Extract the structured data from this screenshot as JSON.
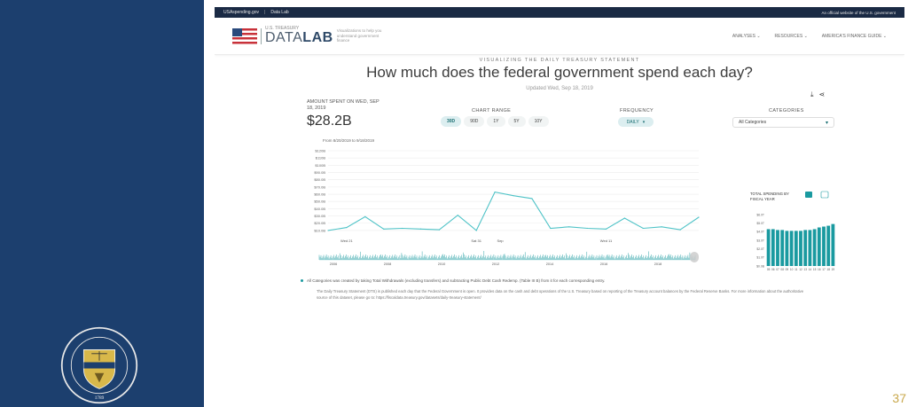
{
  "topbar": {
    "site": "USAspending.gov",
    "separator": "|",
    "section": "Data Lab",
    "official": "An official website of the U.S. government"
  },
  "header": {
    "logo_top": "U.S. TREASURY",
    "logo_main": "DATA",
    "logo_lab": "LAB",
    "tagline": "Visualizations to help you understand government finance",
    "nav": [
      "ANALYSES ⌄",
      "RESOURCES ⌄",
      "AMERICA'S FINANCE GUIDE ⌄"
    ]
  },
  "page": {
    "eyebrow": "VISUALIZING THE DAILY TREASURY STATEMENT",
    "title": "How much does the federal government spend each day?",
    "updated": "Updated Wed, Sep 18, 2019"
  },
  "amount": {
    "label": "AMOUNT SPENT ON WED, SEP 18, 2019",
    "value": "$28.2B"
  },
  "controls": {
    "range_label": "CHART RANGE",
    "range_options": [
      "30D",
      "90D",
      "1Y",
      "5Y",
      "10Y"
    ],
    "range_selected": "30D",
    "frequency_label": "FREQUENCY",
    "frequency_value": "DAILY",
    "categories_label": "CATEGORIES",
    "categories_value": "All Categories"
  },
  "from_text": "From 8/20/2019 to 9/18/2019",
  "chart_data": [
    {
      "type": "line",
      "title": "",
      "xlabel": "",
      "ylabel": "",
      "x": [
        "Aug 20",
        "Aug 21",
        "Aug 22",
        "Aug 23",
        "Aug 26",
        "Aug 27",
        "Aug 28",
        "Aug 29",
        "Aug 30",
        "Sep 3",
        "Sep 4",
        "Sep 5",
        "Sep 6",
        "Sep 9",
        "Sep 10",
        "Sep 11",
        "Sep 12",
        "Sep 13",
        "Sep 16",
        "Sep 17",
        "Sep 18"
      ],
      "values": [
        10,
        14,
        29,
        12,
        13,
        12,
        11,
        31,
        10,
        63,
        58,
        54,
        13,
        15,
        13,
        12,
        27,
        13,
        15,
        11,
        28.2
      ],
      "y_ticks": [
        "$10.0B",
        "$20.0B",
        "$30.0B",
        "$40.0B",
        "$50.0B",
        "$60.0B",
        "$70.0B",
        "$80.0B",
        "$90.0B",
        "$100B",
        "$110B",
        "$120B"
      ],
      "ylim": [
        5,
        120
      ],
      "x_tick_labels": [
        "Wed 21",
        "Sat 31",
        "Sep",
        "Wed 11"
      ],
      "grid": true
    },
    {
      "type": "bar",
      "title": "TOTAL SPENDING BY FISCAL YEAR",
      "categories": [
        "05",
        "06",
        "07",
        "08",
        "09",
        "10",
        "11",
        "12",
        "13",
        "14",
        "15",
        "16",
        "17",
        "18",
        "19"
      ],
      "values": [
        4.3,
        4.3,
        4.2,
        4.2,
        4.1,
        4.1,
        4.1,
        4.1,
        4.2,
        4.2,
        4.3,
        4.5,
        4.6,
        4.7,
        4.9
      ],
      "y_ticks": [
        "$0.0B",
        "$1.0T",
        "$2.0T",
        "$3.0T",
        "$4.0T",
        "$5.0T",
        "$6.0T"
      ],
      "ylim": [
        0,
        6
      ]
    }
  ],
  "brush": {
    "years": [
      "2006",
      "2008",
      "2010",
      "2012",
      "2014",
      "2016",
      "2018"
    ]
  },
  "footnote": "All Categories was created by taking Total Withdrawals (excluding transfers) and subtracting Public Debt Cash Redemp. (Table III B) from it for each corresponding entry.",
  "description": "The Daily Treasury Statement (DTS) is published each day that the Federal Government is open. It provides data on the cash and debt operations of the U.S. Treasury based on reporting of the Treasury account balances by the Federal Reserve Banks. For more information about the authoritative source of this dataset, please go to: https://fiscaldata.treasury.gov/datasets/daily-treasury-statement/",
  "slide_number": "37",
  "colors": {
    "navy": "#1c3f6e",
    "teal": "#1a9aa0",
    "gold": "#c9a84c"
  }
}
